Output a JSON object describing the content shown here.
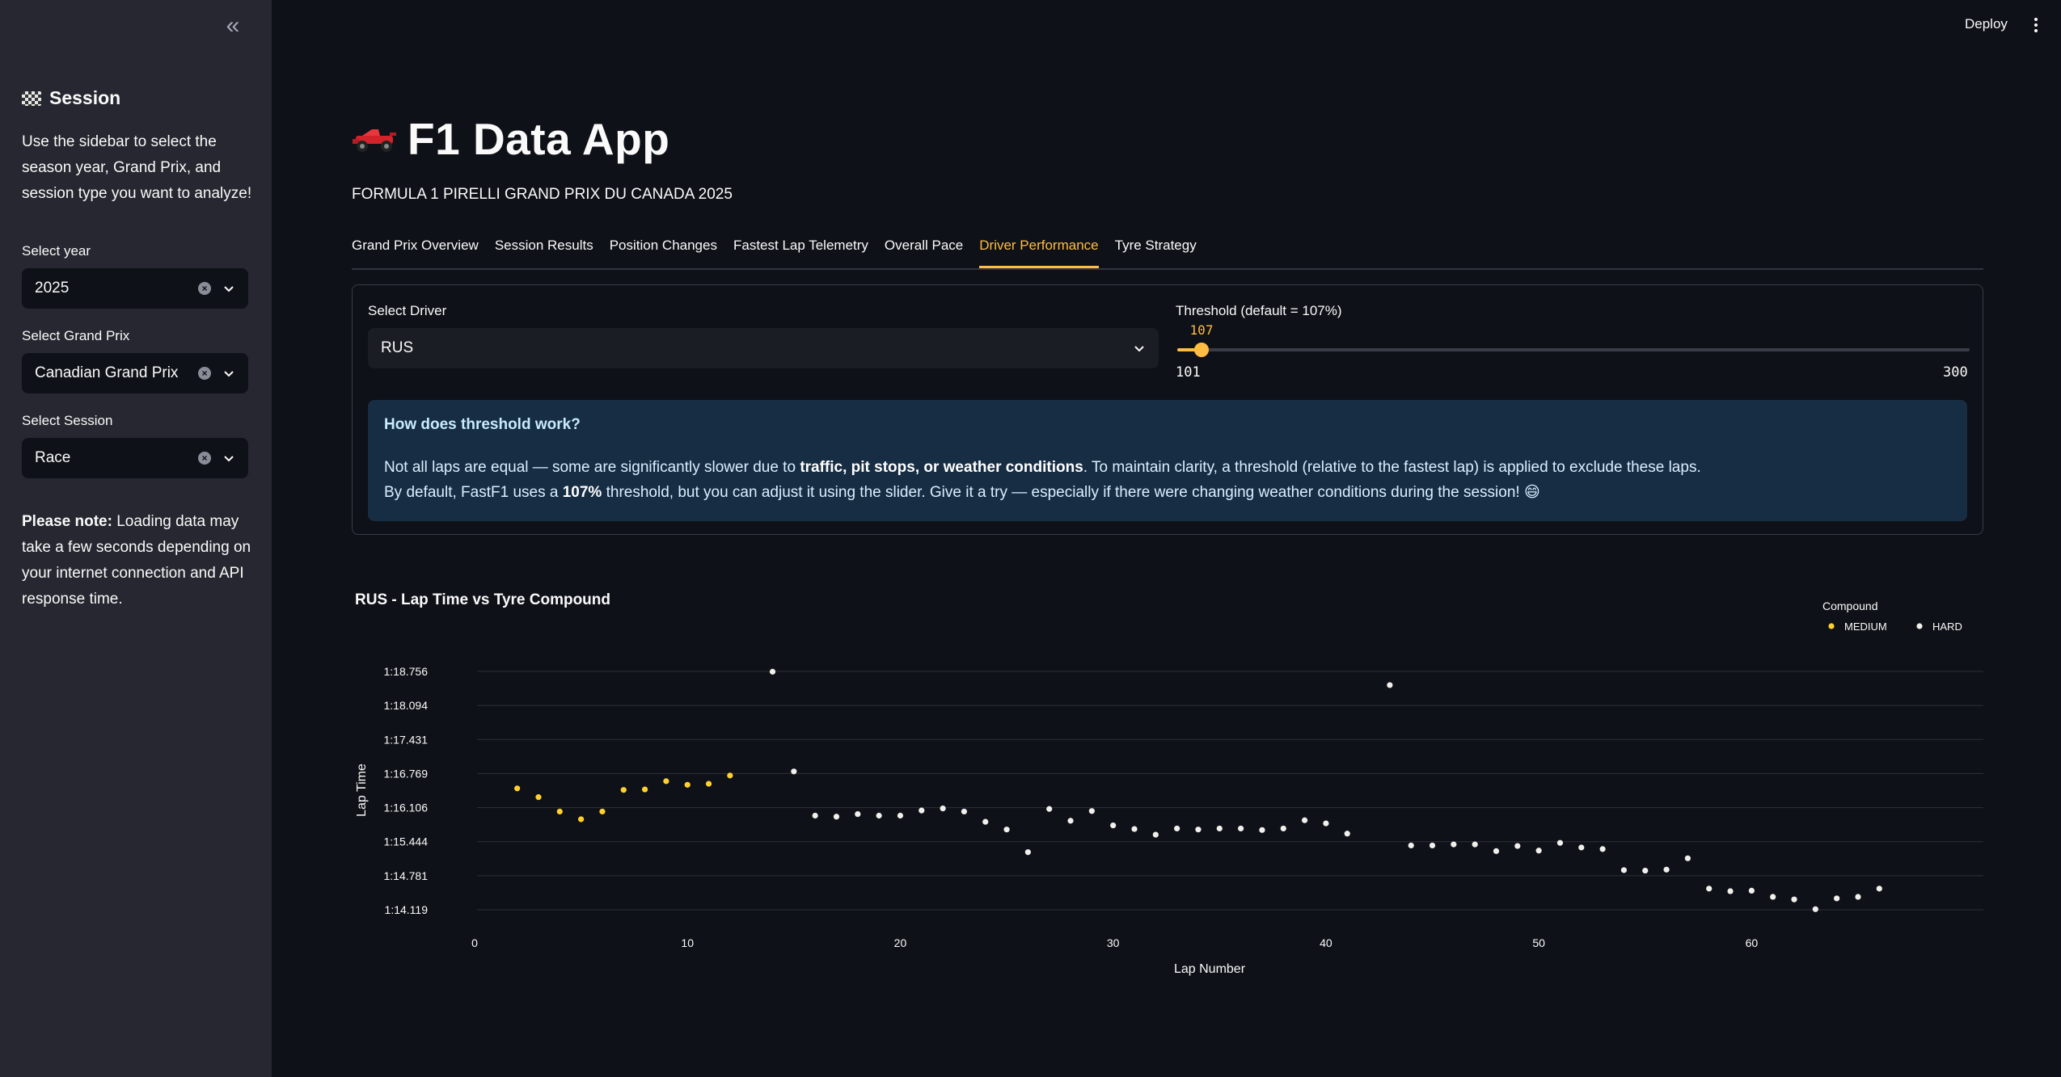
{
  "sidebar": {
    "title": "Session",
    "intro": "Use the sidebar to select the season year, Grand Prix, and session type you want to analyze!",
    "year_label": "Select year",
    "year_value": "2025",
    "gp_label": "Select Grand Prix",
    "gp_value": "Canadian Grand Prix",
    "session_label": "Select Session",
    "session_value": "Race",
    "note_bold": "Please note:",
    "note_text": " Loading data may take a few seconds depending on your internet connection and API response time."
  },
  "topbar": {
    "deploy": "Deploy"
  },
  "main": {
    "title": "F1 Data App",
    "subtitle": "FORMULA 1 PIRELLI GRAND PRIX DU CANADA 2025",
    "tabs": [
      "Grand Prix Overview",
      "Session Results",
      "Position Changes",
      "Fastest Lap Telemetry",
      "Overall Pace",
      "Driver Performance",
      "Tyre Strategy"
    ],
    "active_tab": "Driver Performance",
    "driver_label": "Select Driver",
    "driver_value": "RUS",
    "threshold_label": "Threshold (default = 107%)",
    "threshold_value": 107,
    "threshold_min": 101,
    "threshold_max": 300,
    "info_title": "How does threshold work?",
    "info_l1a": "Not all laps are equal — some are significantly slower due to ",
    "info_l1b": "traffic, pit stops, or weather conditions",
    "info_l1c": ". To maintain clarity, a threshold (relative to the fastest lap) is applied to exclude these laps.",
    "info_l2a": "By default, FastF1 uses a ",
    "info_l2b": "107%",
    "info_l2c": " threshold, but you can adjust it using the slider. Give it a try — especially if there were changing weather conditions during the session! 😄"
  },
  "colors": {
    "accent": "#ffbd45",
    "medium": "#ffd12f",
    "hard": "#f0f0ec",
    "info_bg": "#172d43"
  },
  "chart_data": {
    "type": "scatter",
    "title": "RUS - Lap Time vs Tyre Compound",
    "xlabel": "Lap Number",
    "ylabel": "Lap Time",
    "xlim": [
      0,
      66
    ],
    "x_ticks": [
      0,
      10,
      20,
      30,
      40,
      50,
      60
    ],
    "y_ticks_sec": [
      74.119,
      74.781,
      75.444,
      76.106,
      76.769,
      77.431,
      78.094,
      78.756
    ],
    "y_tick_labels": [
      "1:14.119",
      "1:14.781",
      "1:15.444",
      "1:16.106",
      "1:16.769",
      "1:17.431",
      "1:18.094",
      "1:18.756"
    ],
    "legend_title": "Compound",
    "legend_position": "top-right",
    "grid": true,
    "series": [
      {
        "name": "MEDIUM",
        "x": [
          2,
          3,
          4,
          5,
          6,
          7,
          8,
          9,
          10,
          11,
          12
        ],
        "y": [
          76.48,
          76.31,
          76.03,
          75.88,
          76.03,
          76.45,
          76.46,
          76.62,
          76.55,
          76.57,
          76.73
        ]
      },
      {
        "name": "HARD",
        "x": [
          14,
          15,
          16,
          17,
          18,
          19,
          20,
          21,
          22,
          23,
          24,
          25,
          26,
          27,
          28,
          29,
          30,
          31,
          32,
          33,
          34,
          35,
          36,
          37,
          38,
          39,
          40,
          41,
          43,
          44,
          45,
          46,
          47,
          48,
          49,
          50,
          51,
          52,
          53,
          54,
          55,
          56,
          57,
          58,
          59,
          60,
          61,
          62,
          63,
          64,
          65,
          66
        ],
        "y": [
          78.75,
          76.81,
          75.95,
          75.93,
          75.98,
          75.95,
          75.95,
          76.05,
          76.09,
          76.03,
          75.83,
          75.68,
          75.24,
          76.08,
          75.85,
          76.04,
          75.76,
          75.69,
          75.58,
          75.7,
          75.68,
          75.7,
          75.7,
          75.67,
          75.7,
          75.86,
          75.8,
          75.6,
          78.49,
          75.37,
          75.37,
          75.39,
          75.39,
          75.26,
          75.36,
          75.27,
          75.42,
          75.33,
          75.3,
          74.89,
          74.88,
          74.9,
          75.12,
          74.53,
          74.48,
          74.49,
          74.37,
          74.32,
          74.13,
          74.34,
          74.37,
          74.53
        ]
      }
    ]
  }
}
